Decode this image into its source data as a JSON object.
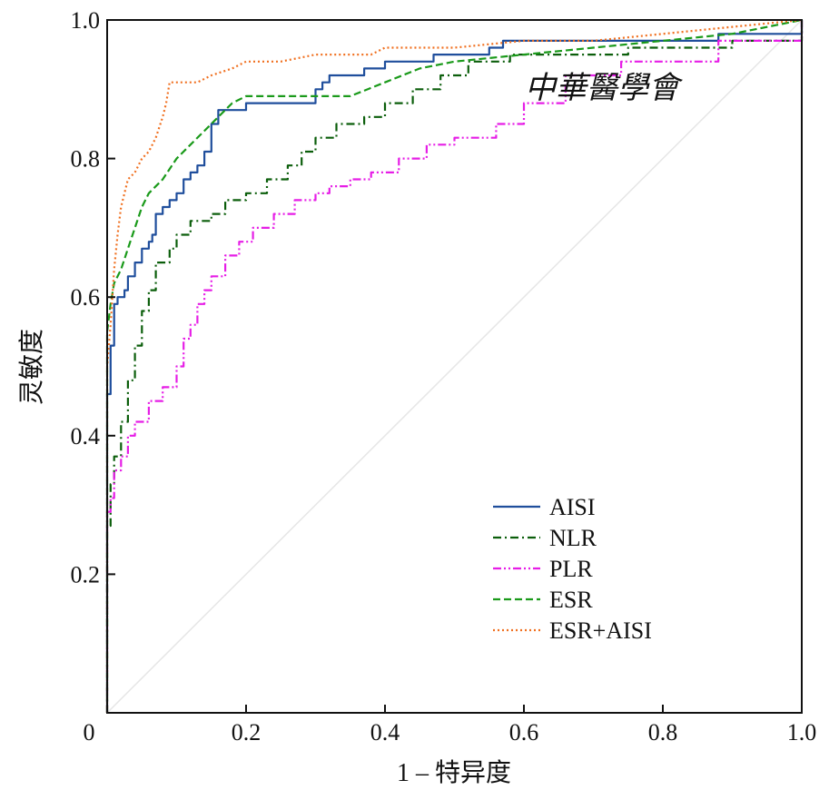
{
  "chart_data": {
    "type": "line",
    "title": "",
    "xlabel": "1 – 特异度",
    "ylabel": "灵敏度",
    "xlim": [
      0,
      1
    ],
    "ylim": [
      0,
      1
    ],
    "xticks": [
      "0",
      "0.2",
      "0.4",
      "0.6",
      "0.8",
      "1.0"
    ],
    "yticks": [
      "0.2",
      "0.4",
      "0.6",
      "0.8",
      "1.0"
    ],
    "grid": false,
    "legend_position": "lower-right",
    "reference_line": {
      "x": [
        0,
        1
      ],
      "y": [
        0,
        1
      ],
      "color": "#e6e6e6"
    },
    "watermark": "中華醫學會",
    "series": [
      {
        "name": "AISI",
        "color": "#1f4e9c",
        "dash": "solid",
        "x": [
          0,
          0,
          0.005,
          0.005,
          0.01,
          0.01,
          0.015,
          0.015,
          0.025,
          0.025,
          0.03,
          0.03,
          0.04,
          0.04,
          0.05,
          0.05,
          0.06,
          0.06,
          0.065,
          0.065,
          0.07,
          0.07,
          0.08,
          0.08,
          0.09,
          0.09,
          0.1,
          0.1,
          0.11,
          0.11,
          0.12,
          0.12,
          0.13,
          0.13,
          0.14,
          0.14,
          0.15,
          0.15,
          0.16,
          0.16,
          0.2,
          0.2,
          0.22,
          0.22,
          0.3,
          0.3,
          0.31,
          0.31,
          0.32,
          0.32,
          0.37,
          0.37,
          0.38,
          0.38,
          0.4,
          0.4,
          0.47,
          0.47,
          0.55,
          0.55,
          0.57,
          0.57,
          0.88,
          0.88,
          1.0,
          1.0
        ],
        "y": [
          0,
          0.46,
          0.46,
          0.53,
          0.53,
          0.59,
          0.59,
          0.6,
          0.6,
          0.61,
          0.61,
          0.63,
          0.63,
          0.65,
          0.65,
          0.67,
          0.67,
          0.68,
          0.68,
          0.69,
          0.69,
          0.72,
          0.72,
          0.73,
          0.73,
          0.74,
          0.74,
          0.75,
          0.75,
          0.77,
          0.77,
          0.78,
          0.78,
          0.79,
          0.79,
          0.81,
          0.81,
          0.85,
          0.85,
          0.87,
          0.87,
          0.88,
          0.88,
          0.88,
          0.88,
          0.9,
          0.9,
          0.91,
          0.91,
          0.92,
          0.92,
          0.93,
          0.93,
          0.93,
          0.93,
          0.94,
          0.94,
          0.95,
          0.95,
          0.96,
          0.96,
          0.97,
          0.97,
          0.98,
          0.98,
          1.0
        ]
      },
      {
        "name": "NLR",
        "color": "#0b5e0b",
        "dash": "dashdot",
        "x": [
          0,
          0,
          0.005,
          0.005,
          0.01,
          0.01,
          0.02,
          0.02,
          0.03,
          0.03,
          0.04,
          0.04,
          0.05,
          0.05,
          0.06,
          0.06,
          0.07,
          0.07,
          0.09,
          0.09,
          0.1,
          0.1,
          0.12,
          0.12,
          0.15,
          0.15,
          0.17,
          0.17,
          0.2,
          0.2,
          0.23,
          0.23,
          0.26,
          0.26,
          0.28,
          0.28,
          0.3,
          0.3,
          0.33,
          0.33,
          0.37,
          0.37,
          0.4,
          0.4,
          0.44,
          0.44,
          0.48,
          0.48,
          0.52,
          0.52,
          0.58,
          0.58,
          0.75,
          0.75,
          0.9,
          0.9,
          1.0,
          1.0
        ],
        "y": [
          0,
          0.27,
          0.27,
          0.33,
          0.33,
          0.37,
          0.37,
          0.42,
          0.42,
          0.48,
          0.48,
          0.53,
          0.53,
          0.58,
          0.58,
          0.61,
          0.61,
          0.65,
          0.65,
          0.67,
          0.67,
          0.69,
          0.69,
          0.71,
          0.71,
          0.72,
          0.72,
          0.74,
          0.74,
          0.75,
          0.75,
          0.77,
          0.77,
          0.79,
          0.79,
          0.81,
          0.81,
          0.83,
          0.83,
          0.85,
          0.85,
          0.86,
          0.86,
          0.88,
          0.88,
          0.9,
          0.9,
          0.92,
          0.92,
          0.94,
          0.94,
          0.95,
          0.95,
          0.96,
          0.96,
          0.97,
          0.97,
          1.0
        ]
      },
      {
        "name": "PLR",
        "color": "#e61ee6",
        "dash": "dashdotdot",
        "x": [
          0,
          0,
          0.005,
          0.005,
          0.01,
          0.01,
          0.02,
          0.02,
          0.03,
          0.03,
          0.04,
          0.04,
          0.06,
          0.06,
          0.08,
          0.08,
          0.1,
          0.1,
          0.11,
          0.11,
          0.12,
          0.12,
          0.13,
          0.13,
          0.14,
          0.14,
          0.15,
          0.15,
          0.17,
          0.17,
          0.19,
          0.19,
          0.21,
          0.21,
          0.24,
          0.24,
          0.27,
          0.27,
          0.3,
          0.3,
          0.32,
          0.32,
          0.35,
          0.35,
          0.38,
          0.38,
          0.42,
          0.42,
          0.46,
          0.46,
          0.5,
          0.5,
          0.56,
          0.56,
          0.6,
          0.6,
          0.66,
          0.66,
          0.74,
          0.74,
          0.88,
          0.88,
          1.0,
          1.0
        ],
        "y": [
          0,
          0.29,
          0.29,
          0.31,
          0.31,
          0.35,
          0.35,
          0.37,
          0.37,
          0.4,
          0.4,
          0.42,
          0.42,
          0.45,
          0.45,
          0.47,
          0.47,
          0.5,
          0.5,
          0.54,
          0.54,
          0.56,
          0.56,
          0.59,
          0.59,
          0.61,
          0.61,
          0.63,
          0.63,
          0.66,
          0.66,
          0.68,
          0.68,
          0.7,
          0.7,
          0.72,
          0.72,
          0.74,
          0.74,
          0.75,
          0.75,
          0.76,
          0.76,
          0.77,
          0.77,
          0.78,
          0.78,
          0.8,
          0.8,
          0.82,
          0.82,
          0.83,
          0.83,
          0.85,
          0.85,
          0.88,
          0.88,
          0.92,
          0.92,
          0.94,
          0.94,
          0.97,
          0.97,
          1.0
        ]
      },
      {
        "name": "ESR",
        "color": "#1a9a1a",
        "dash": "dashed",
        "x": [
          0,
          0,
          0.005,
          0.01,
          0.02,
          0.03,
          0.04,
          0.05,
          0.06,
          0.08,
          0.1,
          0.12,
          0.14,
          0.16,
          0.18,
          0.2,
          0.25,
          0.3,
          0.35,
          0.4,
          0.45,
          0.5,
          0.6,
          0.7,
          0.8,
          0.9,
          1.0
        ],
        "y": [
          0,
          0.55,
          0.59,
          0.62,
          0.64,
          0.67,
          0.7,
          0.73,
          0.75,
          0.77,
          0.8,
          0.82,
          0.84,
          0.86,
          0.88,
          0.89,
          0.89,
          0.89,
          0.89,
          0.91,
          0.93,
          0.94,
          0.95,
          0.96,
          0.97,
          0.98,
          1.0
        ]
      },
      {
        "name": "ESR+AISI",
        "color": "#f07020",
        "dash": "dotted",
        "x": [
          0,
          0,
          0.005,
          0.01,
          0.015,
          0.02,
          0.03,
          0.04,
          0.05,
          0.06,
          0.07,
          0.08,
          0.085,
          0.09,
          0.1,
          0.13,
          0.15,
          0.18,
          0.2,
          0.25,
          0.3,
          0.38,
          0.4,
          0.5,
          0.6,
          0.7,
          0.8,
          0.9,
          1.0
        ],
        "y": [
          0,
          0.5,
          0.56,
          0.64,
          0.69,
          0.73,
          0.77,
          0.78,
          0.8,
          0.81,
          0.83,
          0.86,
          0.88,
          0.91,
          0.91,
          0.91,
          0.92,
          0.93,
          0.94,
          0.94,
          0.95,
          0.95,
          0.96,
          0.96,
          0.97,
          0.97,
          0.98,
          0.99,
          1.0
        ]
      }
    ]
  }
}
